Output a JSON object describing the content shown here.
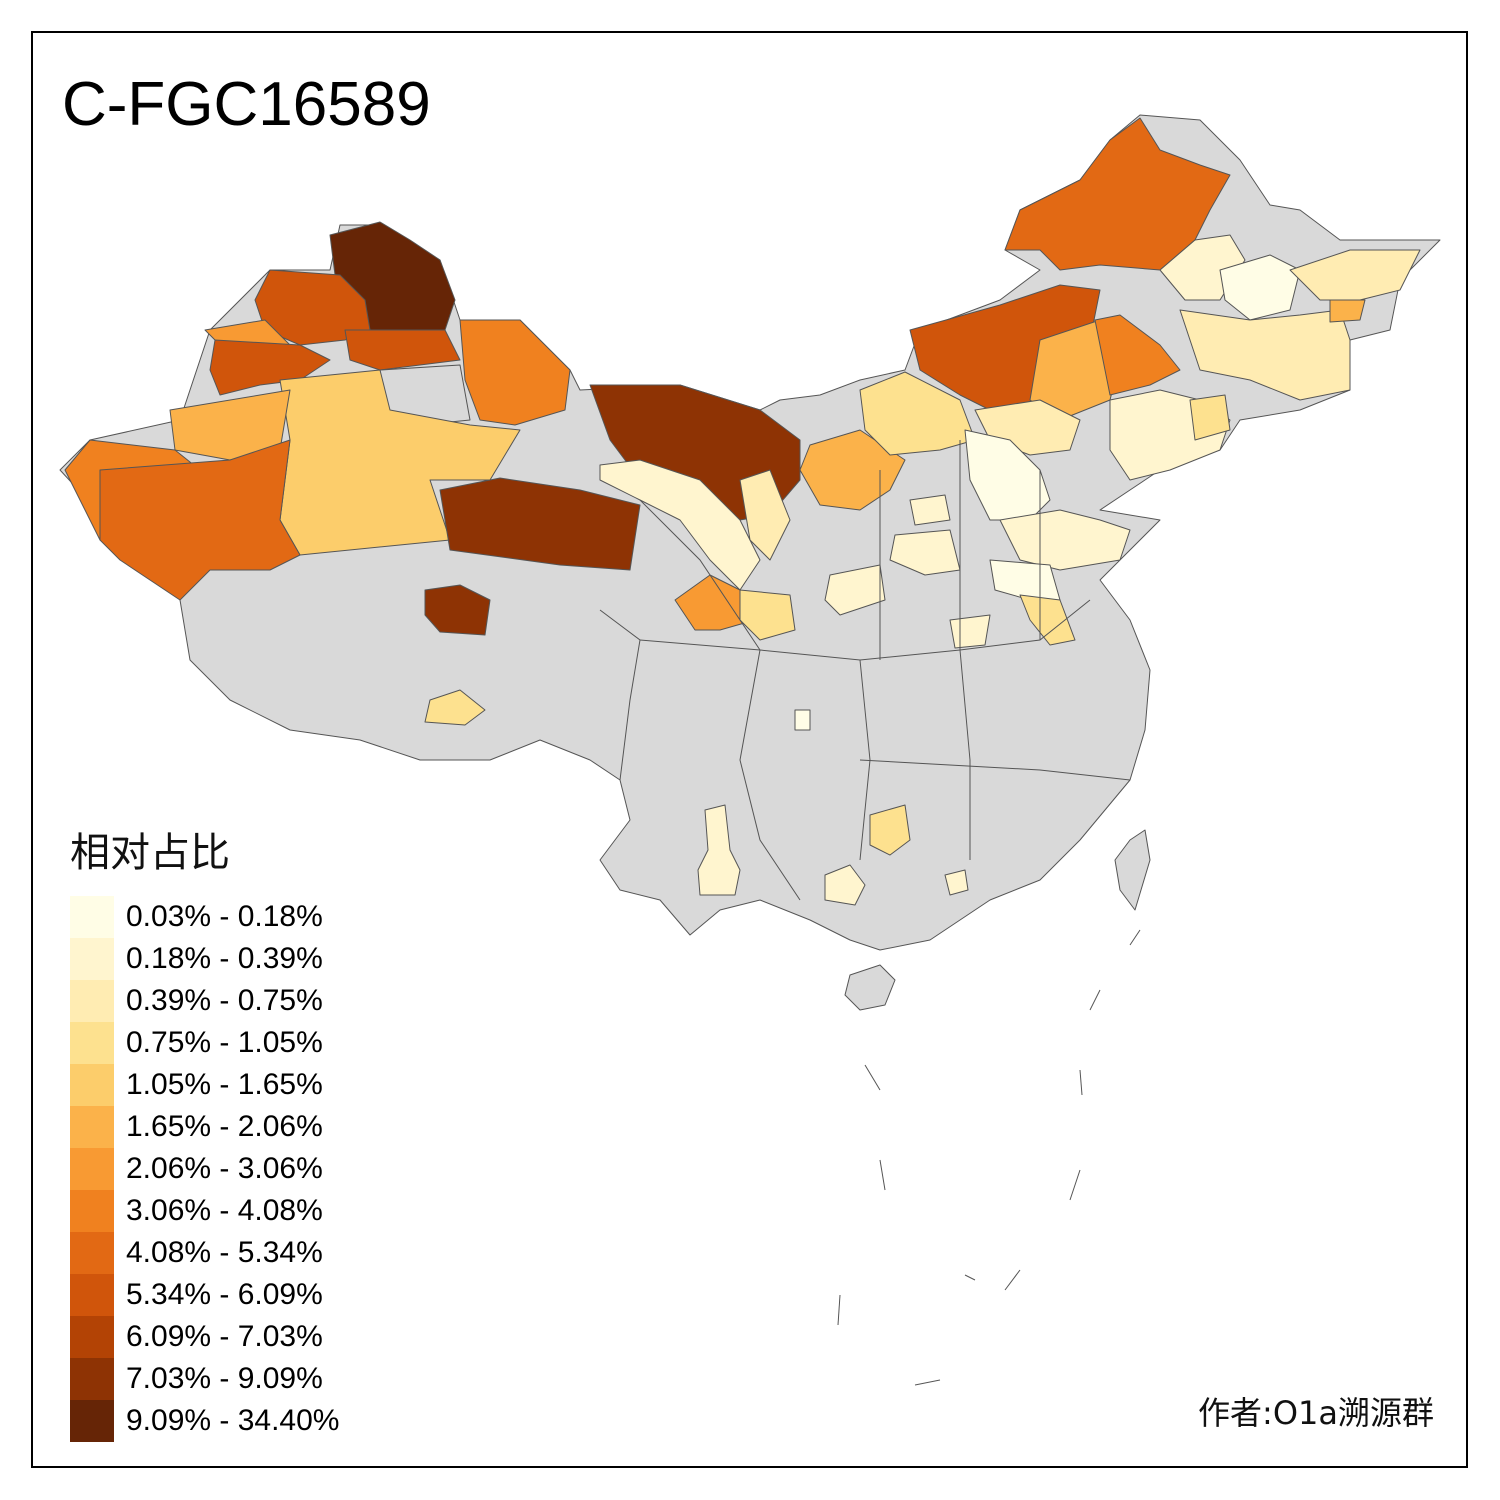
{
  "title": "C-FGC16589",
  "legend": {
    "title": "相对占比",
    "items": [
      {
        "label": "0.03% - 0.18%",
        "color": "#fffde6"
      },
      {
        "label": "0.18% - 0.39%",
        "color": "#fff5cf"
      },
      {
        "label": "0.39% - 0.75%",
        "color": "#ffecb2"
      },
      {
        "label": "0.75% - 1.05%",
        "color": "#fde18f"
      },
      {
        "label": "1.05% - 1.65%",
        "color": "#fccd6b"
      },
      {
        "label": "1.65% - 2.06%",
        "color": "#fbb24a"
      },
      {
        "label": "2.06% - 3.06%",
        "color": "#f89a33"
      },
      {
        "label": "3.06% - 4.08%",
        "color": "#f0811f"
      },
      {
        "label": "4.08% - 5.34%",
        "color": "#e26914"
      },
      {
        "label": "5.34% - 6.09%",
        "color": "#d0550b"
      },
      {
        "label": "6.09% - 7.03%",
        "color": "#b34305"
      },
      {
        "label": "7.03% - 9.09%",
        "color": "#8e3304"
      },
      {
        "label": "9.09% - 34.40%",
        "color": "#662506"
      }
    ]
  },
  "author": "作者:O1a溯源群",
  "colors": {
    "no_data": "#d9d9d9",
    "border": "#555555"
  }
}
